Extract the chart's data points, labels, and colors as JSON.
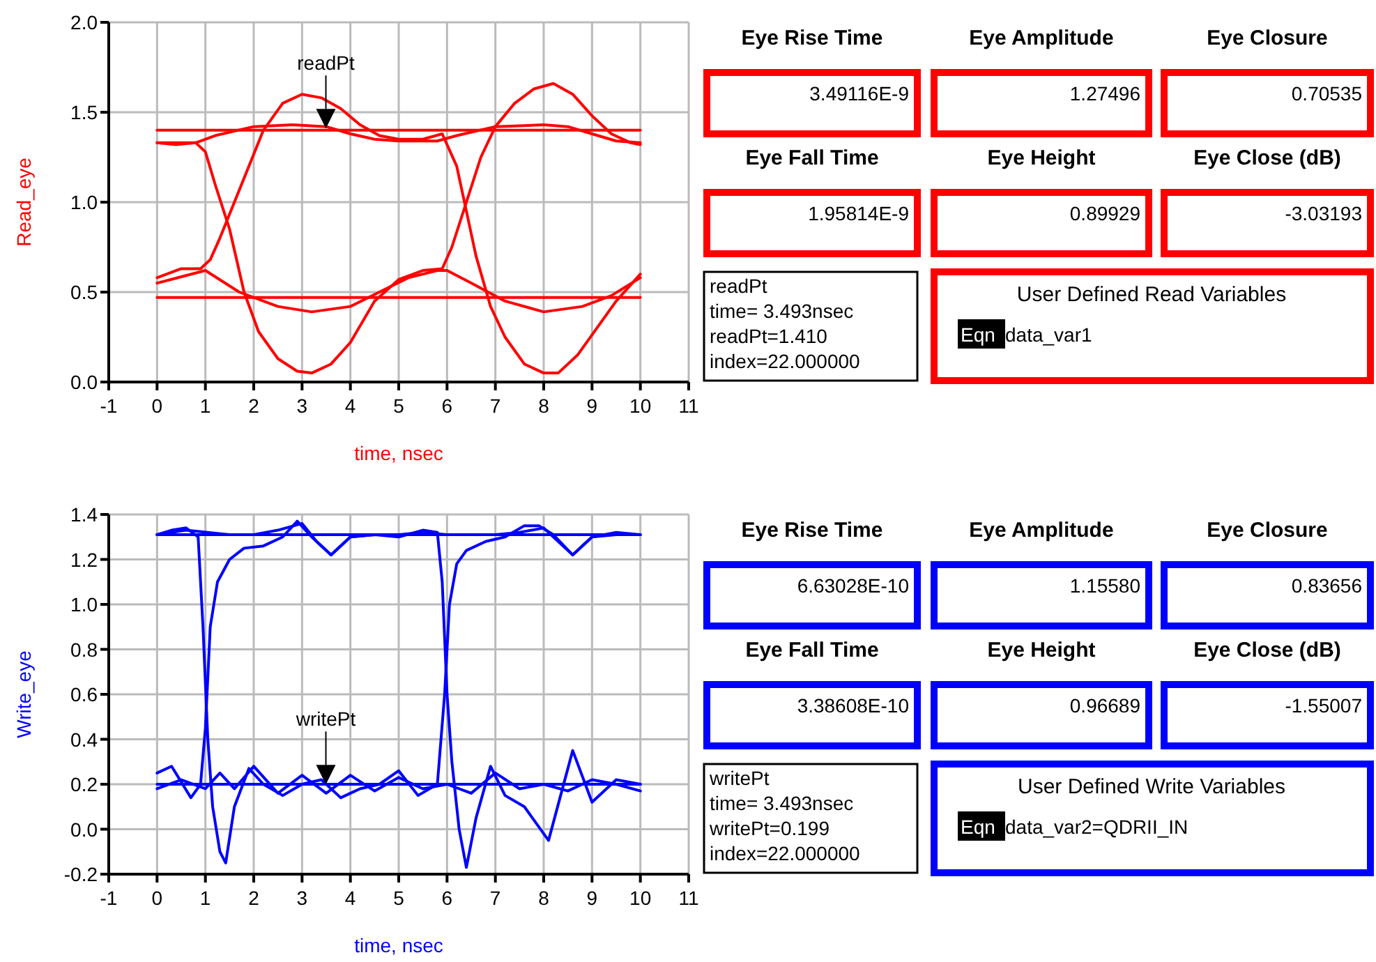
{
  "chart_data": [
    {
      "type": "line",
      "xlabel": "time, nsec",
      "ylabel": "Read_eye",
      "xlim": [
        -1,
        11
      ],
      "xticks": [
        -1,
        0,
        1,
        2,
        3,
        4,
        5,
        6,
        7,
        8,
        9,
        10,
        11
      ],
      "ylim": [
        0,
        2
      ],
      "yticks": [
        {
          "value": 0,
          "label": "0.0"
        },
        0.5,
        {
          "value": 1,
          "label": "1.0"
        },
        1.5,
        {
          "value": 2,
          "label": "2.0"
        }
      ],
      "grid": true,
      "annotations": [
        {
          "text": "readPt",
          "x": 3.493,
          "y": 1.41
        },
        "readPt",
        "time= 3.493nsec",
        "readPt=1.410",
        "index=22.000000"
      ],
      "series": [
        {
          "color": "#ff0000",
          "x": [
            0,
            10
          ],
          "values": [
            1.4,
            1.4
          ]
        },
        {
          "color": "#ff0000",
          "x": [
            0,
            10
          ],
          "values": [
            0.47,
            0.47
          ]
        },
        {
          "color": "#ff0000",
          "x": [
            0,
            0.4,
            0.8,
            1.0,
            1.2,
            1.5,
            1.8,
            2.1,
            2.5,
            2.9,
            3.2,
            3.6,
            4.0,
            4.5,
            5.0,
            5.5,
            5.9,
            6.1,
            6.4,
            6.7,
            7.0,
            7.4,
            7.8,
            8.2,
            8.6,
            9.0,
            9.4,
            9.8,
            10
          ],
          "values": [
            1.33,
            1.32,
            1.33,
            1.28,
            1.1,
            0.85,
            0.5,
            0.28,
            0.13,
            0.06,
            0.05,
            0.1,
            0.22,
            0.45,
            0.57,
            0.62,
            0.63,
            0.75,
            1.0,
            1.25,
            1.42,
            1.55,
            1.63,
            1.66,
            1.6,
            1.48,
            1.38,
            1.33,
            1.32
          ]
        },
        {
          "color": "#ff0000",
          "x": [
            0,
            0.5,
            0.9,
            1.1,
            1.3,
            1.6,
            1.9,
            2.2,
            2.6,
            3.0,
            3.4,
            3.8,
            4.2,
            4.6,
            5.0,
            5.5,
            5.9,
            6.2,
            6.4,
            6.6,
            6.9,
            7.2,
            7.6,
            8.0,
            8.3,
            8.7,
            9.1,
            9.5,
            10
          ],
          "values": [
            0.58,
            0.63,
            0.63,
            0.68,
            0.8,
            1.0,
            1.2,
            1.4,
            1.55,
            1.6,
            1.58,
            1.52,
            1.43,
            1.37,
            1.35,
            1.35,
            1.38,
            1.2,
            0.95,
            0.7,
            0.42,
            0.25,
            0.1,
            0.05,
            0.05,
            0.15,
            0.3,
            0.45,
            0.6
          ]
        },
        {
          "color": "#ff0000",
          "x": [
            0,
            1,
            1.7,
            2.5,
            3.2,
            4,
            4.6,
            5.2,
            5.8,
            6.0,
            6.5,
            7.2,
            8,
            8.8,
            9.4,
            10
          ],
          "values": [
            0.55,
            0.62,
            0.5,
            0.42,
            0.39,
            0.42,
            0.5,
            0.58,
            0.62,
            0.62,
            0.55,
            0.45,
            0.39,
            0.42,
            0.48,
            0.58
          ]
        },
        {
          "color": "#ff0000",
          "x": [
            0,
            0.8,
            1.2,
            2,
            2.8,
            3.5,
            4,
            4.5,
            5,
            5.8,
            6.2,
            7,
            8,
            8.5,
            9,
            9.5,
            10
          ],
          "values": [
            1.33,
            1.33,
            1.37,
            1.42,
            1.43,
            1.42,
            1.38,
            1.35,
            1.34,
            1.34,
            1.37,
            1.42,
            1.43,
            1.42,
            1.38,
            1.34,
            1.33
          ]
        }
      ]
    },
    {
      "type": "other",
      "title": "User Defined Read Variables",
      "color": "#ff0000",
      "annotations": [
        "Eye Rise Time",
        "3.49116E-9",
        "Eye Amplitude",
        "1.27496",
        "Eye Closure",
        "0.70535",
        "Eye Fall Time",
        "1.95814E-9",
        "Eye Height",
        "0.89929",
        "Eye Close (dB)",
        "-3.03193",
        "Eqn",
        "data_var1"
      ]
    },
    {
      "type": "line",
      "xlabel": "time, nsec",
      "ylabel": "Write_eye",
      "xlim": [
        -1,
        11
      ],
      "xticks": [
        -1,
        0,
        1,
        2,
        3,
        4,
        5,
        6,
        7,
        8,
        9,
        10,
        11
      ],
      "ylim": [
        -0.2,
        1.4
      ],
      "yticks": [
        -0.2,
        {
          "value": 0,
          "label": "0.0"
        },
        0.2,
        0.4,
        0.6,
        0.8,
        {
          "value": 1,
          "label": "1.0"
        },
        1.2,
        1.4
      ],
      "grid": true,
      "annotations": [
        {
          "text": "writePt",
          "x": 3.493,
          "y": 0.199
        },
        "writePt",
        "time= 3.493nsec",
        "writePt=0.199",
        "index=22.000000"
      ],
      "series": [
        {
          "color": "#0000ff",
          "x": [
            0,
            10
          ],
          "values": [
            1.31,
            1.31
          ]
        },
        {
          "color": "#0000ff",
          "x": [
            0,
            10
          ],
          "values": [
            0.2,
            0.2
          ]
        },
        {
          "color": "#0000ff",
          "x": [
            0,
            0.3,
            0.6,
            0.85,
            0.95,
            1.05,
            1.15,
            1.3,
            1.42,
            1.6,
            1.9,
            2.2,
            2.6,
            3.0,
            3.4,
            3.8,
            4.2,
            4.6,
            5.0,
            5.4,
            5.8,
            5.95,
            6.05,
            6.2,
            6.4,
            6.8,
            7.2,
            7.6,
            7.9,
            8.2,
            8.6,
            9.0,
            9.5,
            10
          ],
          "values": [
            1.31,
            1.33,
            1.34,
            1.3,
            0.9,
            0.4,
            0.1,
            -0.1,
            -0.15,
            0.1,
            0.27,
            0.2,
            0.15,
            0.2,
            0.22,
            0.14,
            0.18,
            0.2,
            0.26,
            0.15,
            0.2,
            0.6,
            1.0,
            1.18,
            1.24,
            1.28,
            1.3,
            1.35,
            1.35,
            1.31,
            1.22,
            1.3,
            1.31,
            1.31
          ]
        },
        {
          "color": "#0000ff",
          "x": [
            0,
            0.3,
            0.7,
            0.9,
            1.0,
            1.1,
            1.25,
            1.5,
            1.8,
            2.2,
            2.6,
            2.9,
            3.2,
            3.6,
            4.0,
            4.5,
            5.0,
            5.5,
            5.8,
            5.9,
            6.0,
            6.1,
            6.25,
            6.4,
            6.6,
            6.9,
            7.2,
            7.6,
            8.1,
            8.6,
            9.0,
            9.5,
            10
          ],
          "values": [
            0.25,
            0.28,
            0.14,
            0.2,
            0.45,
            0.9,
            1.1,
            1.2,
            1.25,
            1.26,
            1.3,
            1.37,
            1.3,
            1.22,
            1.3,
            1.31,
            1.3,
            1.33,
            1.32,
            1.1,
            0.6,
            0.3,
            0.0,
            -0.17,
            0.05,
            0.28,
            0.15,
            0.1,
            -0.05,
            0.35,
            0.12,
            0.22,
            0.2
          ]
        },
        {
          "color": "#0000ff",
          "x": [
            0,
            0.5,
            1.0,
            1.3,
            1.6,
            2.0,
            2.5,
            3.0,
            3.5,
            4.0,
            4.5,
            5.0,
            5.5,
            6.0,
            6.5,
            7.0,
            7.5,
            8.0,
            8.5,
            9.0,
            9.5,
            10
          ],
          "values": [
            0.18,
            0.22,
            0.18,
            0.25,
            0.18,
            0.28,
            0.16,
            0.24,
            0.16,
            0.24,
            0.17,
            0.23,
            0.18,
            0.2,
            0.16,
            0.25,
            0.18,
            0.2,
            0.17,
            0.22,
            0.2,
            0.17
          ]
        },
        {
          "color": "#0000ff",
          "x": [
            0,
            0.6,
            1.5,
            2.0,
            2.5,
            3.0,
            3.3,
            3.6,
            4.0,
            4.5,
            5.0,
            5.5,
            6.0,
            6.5,
            7.0,
            7.5,
            8.0,
            8.3,
            8.6,
            9.0,
            9.5,
            10
          ],
          "values": [
            1.31,
            1.33,
            1.31,
            1.31,
            1.33,
            1.36,
            1.28,
            1.22,
            1.3,
            1.31,
            1.31,
            1.32,
            1.31,
            1.31,
            1.31,
            1.32,
            1.34,
            1.28,
            1.22,
            1.3,
            1.32,
            1.31
          ]
        }
      ]
    },
    {
      "type": "other",
      "title": "User Defined Write Variables",
      "color": "#0000ff",
      "annotations": [
        "Eye Rise Time",
        "6.63028E-10",
        "Eye Amplitude",
        "1.15580",
        "Eye Closure",
        "0.83656",
        "Eye Fall Time",
        "3.38608E-10",
        "Eye Height",
        "0.96689",
        "Eye Close (dB)",
        "-1.55007",
        "Eqn",
        "data_var2=QDRII_IN"
      ]
    }
  ]
}
